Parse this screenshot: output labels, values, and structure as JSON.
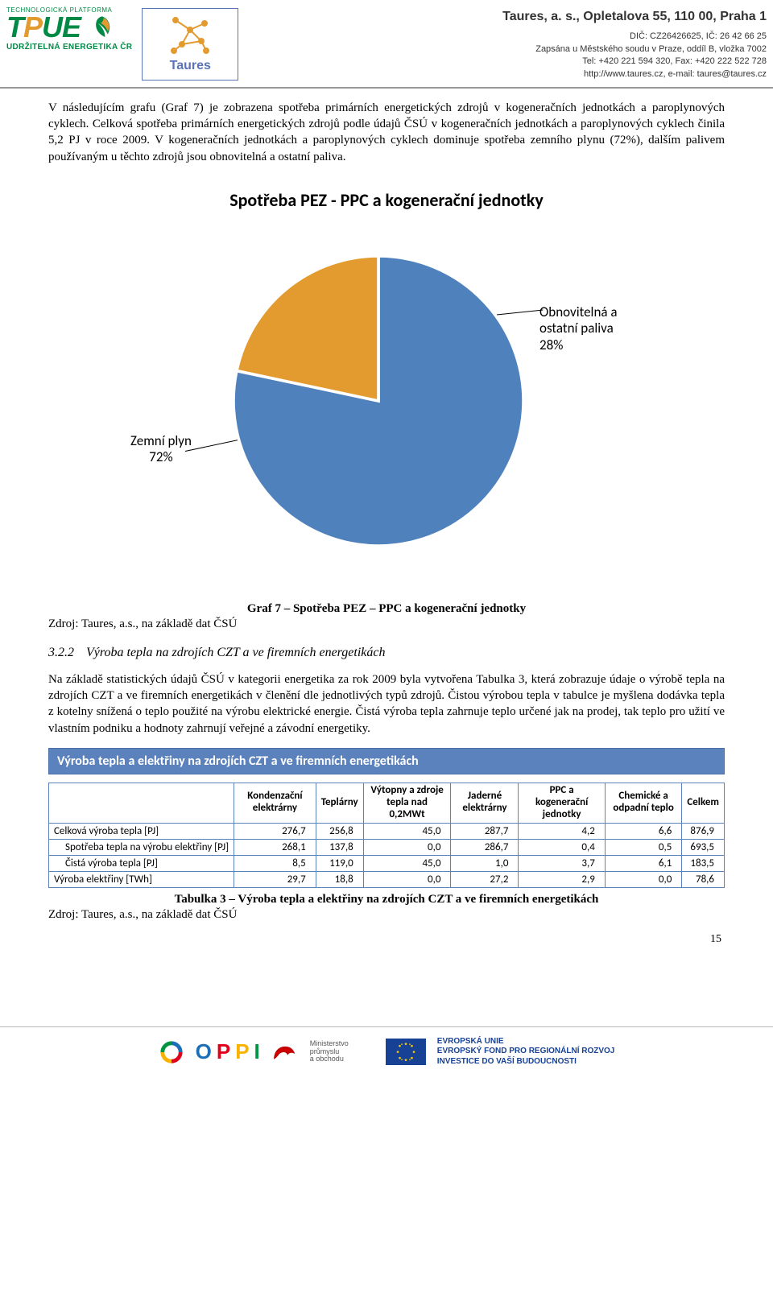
{
  "header": {
    "tpue_sub": "UDRŽITELNÁ ENERGETIKA ČR",
    "tpue_top": "TECHNOLOGICKÁ PLATFORMA",
    "taures_name": "Taures",
    "right_title": "Taures, a. s., Opletalova 55, 110 00, Praha 1",
    "right_line1": "DIČ: CZ26426625, IČ: 26 42 66 25",
    "right_line2": "Zapsána u Městského soudu v Praze, oddíl B, vložka 7002",
    "right_line3": "Tel: +420 221 594 320, Fax: +420 222 522 728",
    "right_line4": "http://www.taures.cz, e-mail: taures@taures.cz"
  },
  "para1": "V následujícím grafu (Graf 7) je zobrazena spotřeba primárních energetických zdrojů v kogeneračních jednotkách a paroplynových cyklech. Celková spotřeba primárních energetických zdrojů podle údajů ČSÚ v kogeneračních jednotkách a paroplynových cyklech činila 5,2 PJ v roce 2009. V kogeneračních jednotkách a paroplynových cyklech dominuje spotřeba zemního plynu (72%), dalším palivem používaným u těchto zdrojů jsou obnovitelná a ostatní paliva.",
  "chart": {
    "title": "Spotřeba PEZ - PPC a kogenerační jednotky",
    "type": "pie",
    "slices": [
      {
        "label": "Zemní plyn",
        "pct": 72,
        "color": "#4f81bd",
        "label_text": "Zemní plyn\n72%"
      },
      {
        "label": "Obnovitelná a ostatní paliva",
        "pct": 28,
        "color": "#e39b2f",
        "label_text": "Obnovitelná a\nostatní paliva\n28%"
      }
    ],
    "background_color": "#ffffff",
    "stroke_color": "#ffffff",
    "label_font": "Calibri",
    "label_fontsize": 17
  },
  "caption1": "Graf 7 – Spotřeba PEZ – PPC a kogenerační jednotky",
  "source1": "Zdroj: Taures, a.s., na základě dat ČSÚ",
  "section": {
    "num": "3.2.2",
    "title": "Výroba tepla na zdrojích CZT a ve firemních energetikách"
  },
  "para2": "Na základě statistických údajů ČSÚ v kategorii energetika za rok 2009 byla vytvořena Tabulka 3, která zobrazuje údaje o výrobě tepla na zdrojích CZT a ve firemních energetikách v členění dle jednotlivých typů zdrojů. Čistou výrobou tepla v tabulce je myšlena dodávka tepla z kotelny snížená o teplo použité na výrobu elektrické energie. Čistá výroba tepla zahrnuje teplo určené jak na prodej, tak teplo pro užití ve vlastním podniku a hodnoty zahrnují veřejné a závodní energetiky.",
  "table": {
    "banner": "Výroba tepla a elektřiny na zdrojích CZT a ve firemních energetikách",
    "columns": [
      "Kondenzační elektrárny",
      "Teplárny",
      "Výtopny a zdroje tepla nad 0,2MWt",
      "Jaderné elektrárny",
      "PPC a kogenerační jednotky",
      "Chemické a odpadní teplo",
      "Celkem"
    ],
    "rows": [
      {
        "label": "Celková výroba tepla [PJ]",
        "indent": false,
        "vals": [
          "276,7",
          "256,8",
          "45,0",
          "287,7",
          "4,2",
          "6,6",
          "876,9"
        ]
      },
      {
        "label": "Spotřeba tepla na výrobu elektřiny [PJ]",
        "indent": true,
        "vals": [
          "268,1",
          "137,8",
          "0,0",
          "286,7",
          "0,4",
          "0,5",
          "693,5"
        ]
      },
      {
        "label": "Čistá výroba tepla [PJ]",
        "indent": true,
        "vals": [
          "8,5",
          "119,0",
          "45,0",
          "1,0",
          "3,7",
          "6,1",
          "183,5"
        ]
      },
      {
        "label": "Výroba elektřiny [TWh]",
        "indent": false,
        "vals": [
          "29,7",
          "18,8",
          "0,0",
          "27,2",
          "2,9",
          "0,0",
          "78,6"
        ]
      }
    ],
    "banner_bg": "#5b82bc",
    "banner_fg": "#ffffff",
    "border_color": "#5b82bc",
    "font": "Calibri",
    "fontsize": 13
  },
  "caption2": "Tabulka 3 – Výroba tepla a elektřiny na zdrojích CZT a ve firemních energetikách",
  "source2": "Zdroj: Taures, a.s., na základě dat ČSÚ",
  "footer": {
    "mpo_line1": "Ministerstvo",
    "mpo_line2": "průmyslu",
    "mpo_line3": "a obchodu",
    "eu_line1": "EVROPSKÁ UNIE",
    "eu_line2": "EVROPSKÝ FOND PRO REGIONÁLNÍ ROZVOJ",
    "eu_line3": "INVESTICE DO VAŠÍ BUDOUCNOSTI"
  },
  "page_number": "15"
}
